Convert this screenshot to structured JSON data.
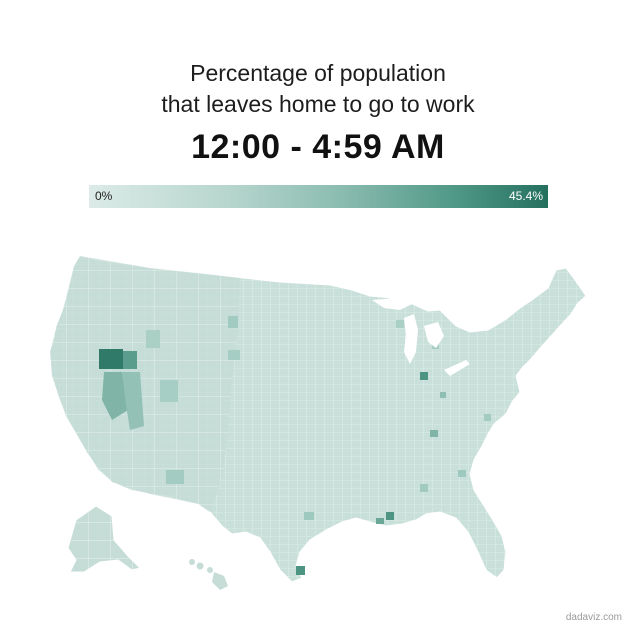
{
  "title_line1": "Percentage of population",
  "title_line2": "that leaves home to go to work",
  "time_range": "12:00 - 4:59 AM",
  "legend": {
    "min_label": "0%",
    "max_label": "45.4%",
    "color_low": "#dcebe7",
    "color_high": "#25705f"
  },
  "map_colors": {
    "base": "#cfe3de",
    "stroke": "#ffffff",
    "medium": "#a9cfc6",
    "dark": "#4e9483",
    "darkest": "#2f7a68"
  },
  "credit": "dadaviz.com"
}
